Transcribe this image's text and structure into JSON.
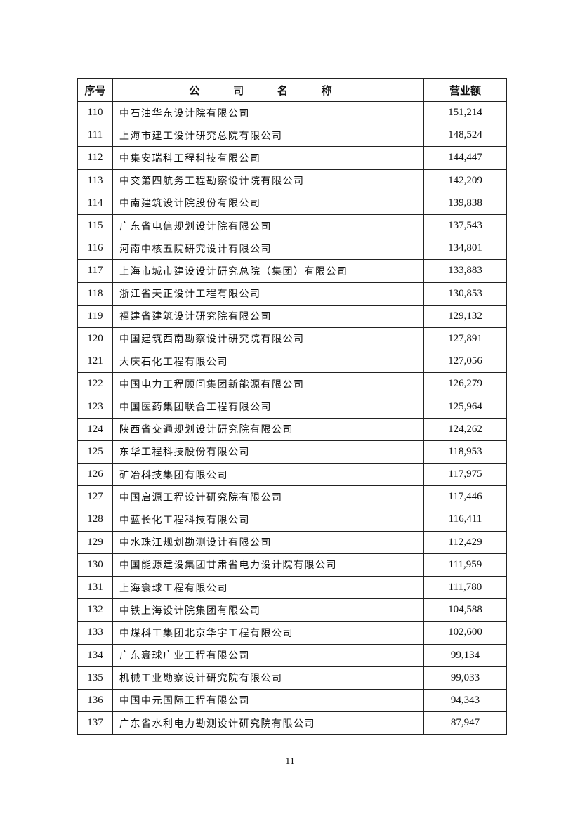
{
  "table": {
    "headers": {
      "no": "序号",
      "name": "公 司 名 称",
      "revenue": "营业额"
    },
    "rows": [
      {
        "no": "110",
        "name": "中石油华东设计院有限公司",
        "revenue": "151,214"
      },
      {
        "no": "111",
        "name": "上海市建工设计研究总院有限公司",
        "revenue": "148,524"
      },
      {
        "no": "112",
        "name": "中集安瑞科工程科技有限公司",
        "revenue": "144,447"
      },
      {
        "no": "113",
        "name": "中交第四航务工程勘察设计院有限公司",
        "revenue": "142,209"
      },
      {
        "no": "114",
        "name": "中南建筑设计院股份有限公司",
        "revenue": "139,838"
      },
      {
        "no": "115",
        "name": "广东省电信规划设计院有限公司",
        "revenue": "137,543"
      },
      {
        "no": "116",
        "name": "河南中核五院研究设计有限公司",
        "revenue": "134,801"
      },
      {
        "no": "117",
        "name": "上海市城市建设设计研究总院（集团）有限公司",
        "revenue": "133,883"
      },
      {
        "no": "118",
        "name": "浙江省天正设计工程有限公司",
        "revenue": "130,853"
      },
      {
        "no": "119",
        "name": "福建省建筑设计研究院有限公司",
        "revenue": "129,132"
      },
      {
        "no": "120",
        "name": "中国建筑西南勘察设计研究院有限公司",
        "revenue": "127,891"
      },
      {
        "no": "121",
        "name": "大庆石化工程有限公司",
        "revenue": "127,056"
      },
      {
        "no": "122",
        "name": "中国电力工程顾问集团新能源有限公司",
        "revenue": "126,279"
      },
      {
        "no": "123",
        "name": "中国医药集团联合工程有限公司",
        "revenue": "125,964"
      },
      {
        "no": "124",
        "name": "陕西省交通规划设计研究院有限公司",
        "revenue": "124,262"
      },
      {
        "no": "125",
        "name": "东华工程科技股份有限公司",
        "revenue": "118,953"
      },
      {
        "no": "126",
        "name": "矿冶科技集团有限公司",
        "revenue": "117,975"
      },
      {
        "no": "127",
        "name": "中国启源工程设计研究院有限公司",
        "revenue": "117,446"
      },
      {
        "no": "128",
        "name": "中蓝长化工程科技有限公司",
        "revenue": "116,411"
      },
      {
        "no": "129",
        "name": "中水珠江规划勘测设计有限公司",
        "revenue": "112,429"
      },
      {
        "no": "130",
        "name": "中国能源建设集团甘肃省电力设计院有限公司",
        "revenue": "111,959"
      },
      {
        "no": "131",
        "name": "上海寰球工程有限公司",
        "revenue": "111,780"
      },
      {
        "no": "132",
        "name": "中铁上海设计院集团有限公司",
        "revenue": "104,588"
      },
      {
        "no": "133",
        "name": "中煤科工集团北京华宇工程有限公司",
        "revenue": "102,600"
      },
      {
        "no": "134",
        "name": "广东寰球广业工程有限公司",
        "revenue": "99,134"
      },
      {
        "no": "135",
        "name": "机械工业勘察设计研究院有限公司",
        "revenue": "99,033"
      },
      {
        "no": "136",
        "name": "中国中元国际工程有限公司",
        "revenue": "94,343"
      },
      {
        "no": "137",
        "name": "广东省水利电力勘测设计研究院有限公司",
        "revenue": "87,947"
      }
    ]
  },
  "page_number": "11"
}
